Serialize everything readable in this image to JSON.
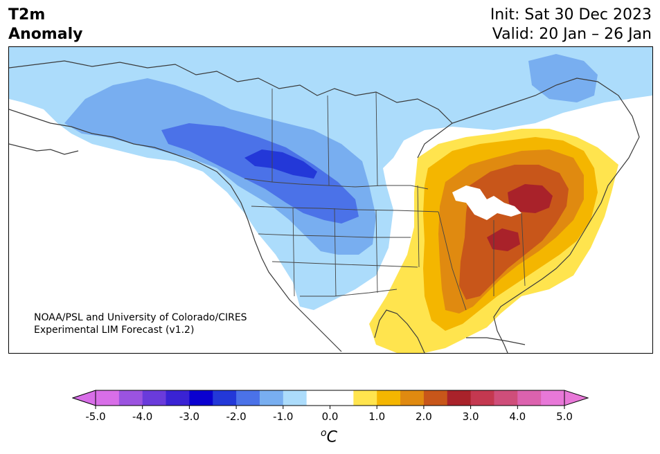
{
  "title": {
    "left_line1": "T2m",
    "left_line2": "Anomaly",
    "right_line1": "Init: Sat 30 Dec 2023",
    "right_line2": "Valid: 20 Jan – 26 Jan"
  },
  "credit": {
    "line1": "NOAA/PSL and University of Colorado/CIRES",
    "line2": "Experimental LIM Forecast (v1.2)"
  },
  "colorbar": {
    "ticks": [
      "-5.0",
      "-4.0",
      "-3.0",
      "-2.0",
      "-1.0",
      "0.0",
      "1.0",
      "2.0",
      "3.0",
      "4.0",
      "5.0"
    ],
    "unit_prefix": "o",
    "unit_main": "C",
    "colors": [
      "#d86ee8",
      "#9b53e0",
      "#6a3bdb",
      "#3a23d4",
      "#0a00d0",
      "#2338d8",
      "#4b72e8",
      "#78aef0",
      "#acdcfb",
      "#ffffff",
      "#ffffff",
      "#ffe44e",
      "#f4b600",
      "#e08a10",
      "#c8561a",
      "#a9222a",
      "#c43850",
      "#cf4e7a",
      "#dc62ae",
      "#e878d8"
    ]
  },
  "map": {
    "colors": {
      "land": "#ffffff",
      "neg1": "#acdcfb",
      "neg15": "#78aef0",
      "neg2": "#4b72e8",
      "neg25": "#2338d8",
      "pos1": "#ffe44e",
      "pos15": "#f4b600",
      "pos2": "#e08a10",
      "pos25": "#c8561a",
      "pos3": "#a9222a",
      "coast": "#3a3a3a"
    }
  }
}
